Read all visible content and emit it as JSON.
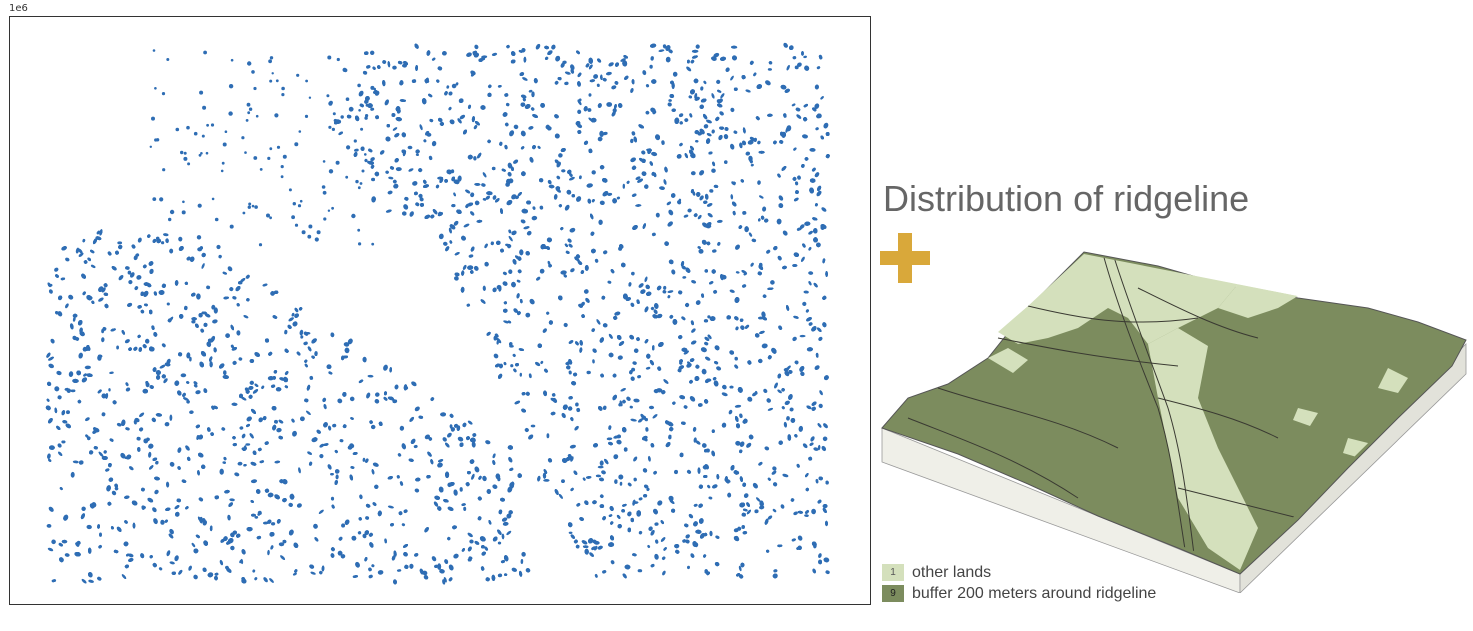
{
  "plot": {
    "offset_label": "1e6",
    "point_color": "#2E6DB4",
    "region_description": "scatter of ridgeline points"
  },
  "title": "Distribution of ridgeline",
  "plus_icon": {
    "name": "plus-icon",
    "color": "#D9A83A"
  },
  "terrain": {
    "colors": {
      "other_lands": "#D4E0BC",
      "buffer": "#7C8C5E",
      "side": "#F2F2EC",
      "roads": "#3A3A32"
    }
  },
  "legend": {
    "items": [
      {
        "code": "1",
        "label": "other lands",
        "color": "#D4E0BC"
      },
      {
        "code": "9",
        "label": "buffer 200 meters around ridgeline",
        "color": "#7C8C5E"
      }
    ]
  }
}
